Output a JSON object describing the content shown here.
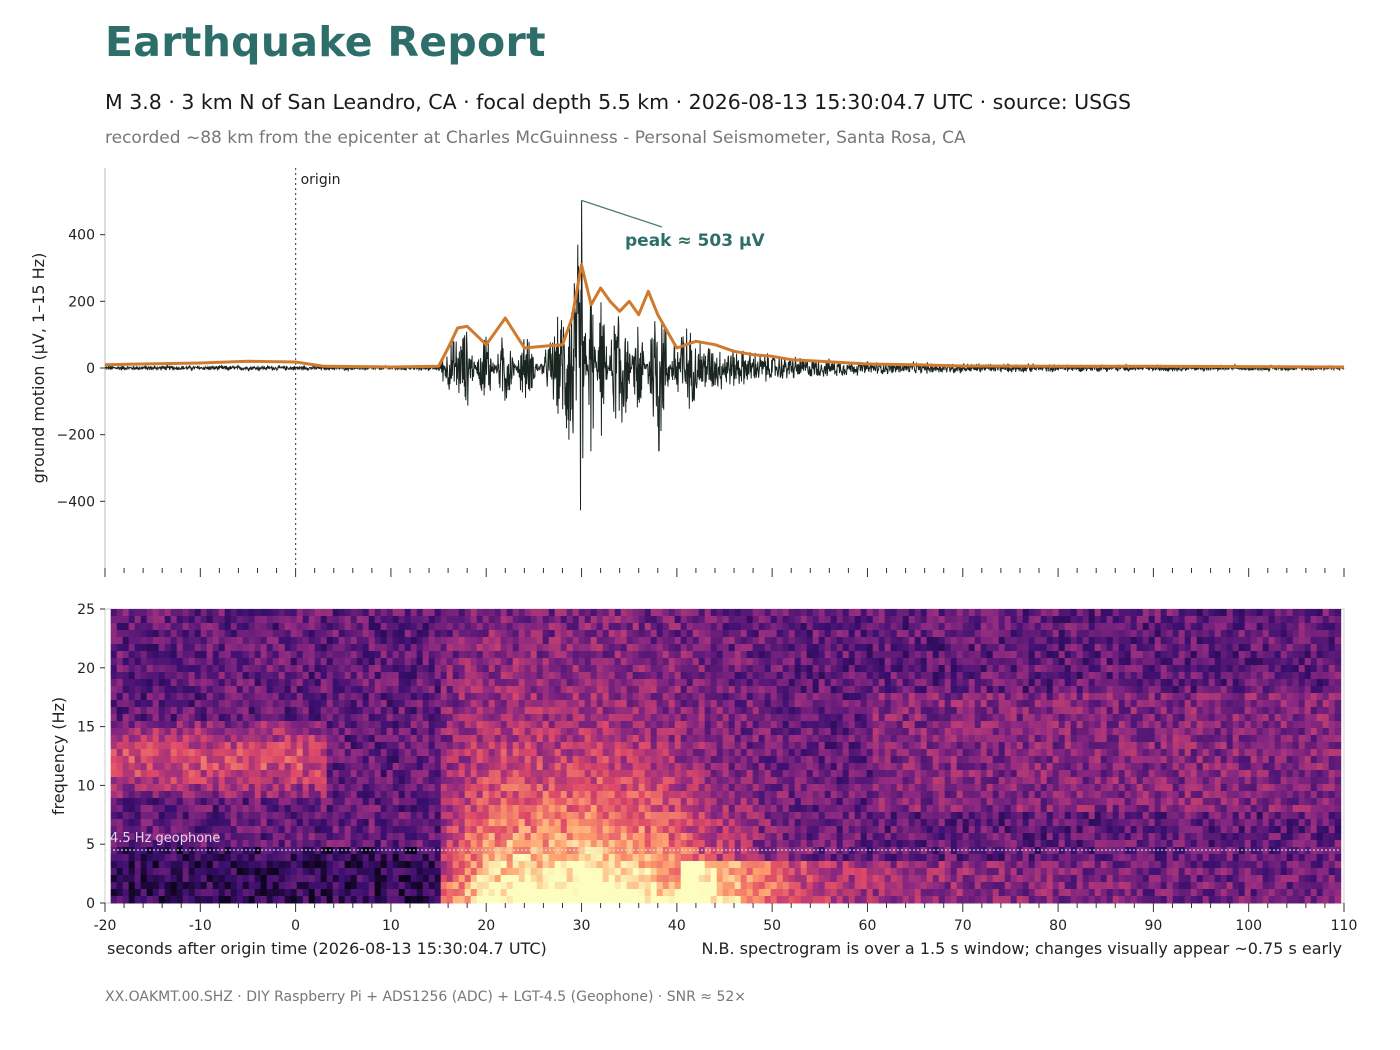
{
  "header": {
    "title": "Earthquake Report",
    "summary": "M 3.8  ·  3 km N of San Leandro, CA  ·  focal depth 5.5 km  ·  2026-08-13 15:30:04.7 UTC  ·  source: USGS",
    "station_line": "recorded ~88 km from the epicenter at Charles McGuinness - Personal Seismometer, Santa Rosa, CA"
  },
  "footer": {
    "text": "XX.OAKMT.00.SHZ  ·  DIY Raspberry Pi + ADS1256 (ADC) + LGT-4.5 (Geophone)  ·  SNR ≈ 52×"
  },
  "colors": {
    "accent": "#2e6e6a",
    "waveform": "#1b2520",
    "envelope": "#d07a2e"
  },
  "chart_data": [
    {
      "type": "line",
      "title": "",
      "ylabel": "ground motion  (μV, 1–15 Hz)",
      "xlabel": "",
      "xlim": [
        -20,
        110
      ],
      "ylim": [
        -600,
        600
      ],
      "yticks": [
        400,
        200,
        0,
        -200,
        -400
      ],
      "ytick_labels": [
        "400",
        "200",
        "0",
        "−200",
        "−400"
      ],
      "grid": false,
      "series": [
        {
          "name": "",
          "description": "seismogram trace",
          "x": [
            -20,
            -10,
            0,
            3,
            10,
            15,
            16,
            18,
            20,
            22,
            24,
            28,
            30,
            31,
            32,
            34,
            36,
            38,
            40,
            42,
            44,
            48,
            50,
            55,
            60,
            70,
            80,
            110
          ],
          "y": [
            0,
            0,
            0,
            0,
            0,
            0,
            80,
            130,
            -150,
            160,
            -130,
            200,
            503,
            -350,
            250,
            -350,
            230,
            -380,
            180,
            100,
            70,
            50,
            40,
            25,
            15,
            10,
            5,
            0
          ]
        },
        {
          "name": "",
          "description": "envelope",
          "x": [
            -20,
            -10,
            -5,
            0,
            3,
            10,
            15,
            16,
            17,
            18,
            20,
            22,
            24,
            26,
            28,
            29,
            30,
            31,
            32,
            33,
            34,
            35,
            36,
            37,
            38,
            40,
            42,
            44,
            46,
            48,
            50,
            52,
            55,
            60,
            65,
            70,
            80,
            90,
            110
          ],
          "y": [
            10,
            15,
            20,
            18,
            5,
            3,
            5,
            60,
            120,
            125,
            70,
            150,
            60,
            65,
            70,
            150,
            310,
            190,
            240,
            200,
            170,
            200,
            160,
            230,
            160,
            60,
            80,
            70,
            50,
            40,
            35,
            25,
            20,
            12,
            10,
            6,
            5,
            5,
            3
          ]
        }
      ],
      "annotations": [
        {
          "text": "origin",
          "x": 0
        },
        {
          "text": "peak ≈ 503 μV",
          "x": 30,
          "y": 503
        }
      ]
    },
    {
      "type": "heatmap",
      "title": "",
      "ylabel": "frequency (Hz)",
      "xlabel": "seconds after origin time  (2026-08-13 15:30:04.7 UTC)",
      "note": "N.B. spectrogram is over a 1.5 s window; changes visually appear ~0.75 s early",
      "xlim": [
        -20,
        110
      ],
      "ylim": [
        0,
        25
      ],
      "xticks": [
        -20,
        -10,
        0,
        10,
        20,
        30,
        40,
        50,
        60,
        70,
        80,
        90,
        100,
        110
      ],
      "yticks": [
        0,
        5,
        10,
        15,
        20,
        25
      ],
      "colormap": [
        "#000004",
        "#3b0f70",
        "#8c2981",
        "#de4968",
        "#fe9f6d",
        "#fcfdbf"
      ],
      "reference_line": {
        "text": "4.5 Hz geophone",
        "y": 4.5
      }
    }
  ]
}
